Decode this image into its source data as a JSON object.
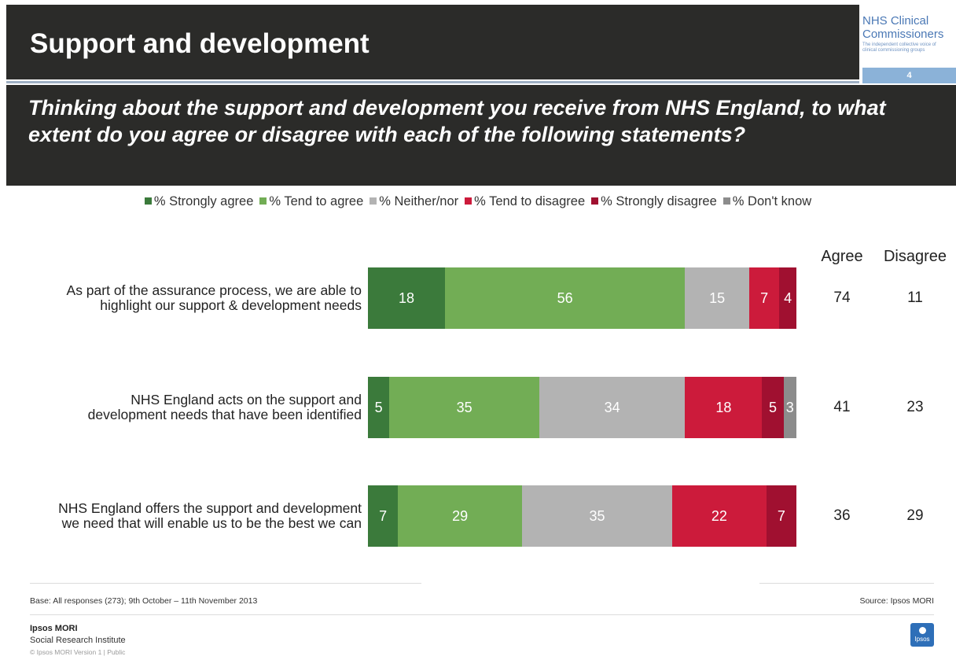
{
  "header": {
    "title": "Support and development",
    "question": "Thinking about the support and development you receive from NHS England, to what extent do you agree or disagree with each of the following statements?",
    "logo_line1": "NHS Clinical",
    "logo_line2": "Commissioners",
    "logo_sub": "The independent collective voice of clinical commissioning groups",
    "page_number": "4"
  },
  "legend": [
    {
      "label": "% Strongly agree",
      "color": "#3b7a3b"
    },
    {
      "label": "% Tend to agree",
      "color": "#72ad55"
    },
    {
      "label": "% Neither/nor",
      "color": "#b3b3b3"
    },
    {
      "label": "% Tend to disagree",
      "color": "#cc1b3b"
    },
    {
      "label": "% Strongly disagree",
      "color": "#a01030"
    },
    {
      "label": "% Don't know",
      "color": "#8c8c8c"
    }
  ],
  "columns": {
    "agree": "Agree",
    "disagree": "Disagree"
  },
  "chart_data": {
    "type": "bar",
    "orientation": "horizontal",
    "stacked": true,
    "categories": [
      "As part of the assurance process, we are able to highlight our support & development needs",
      "NHS England acts on the support and development needs that have been identified",
      "NHS England offers the support and development we need that will enable us to be the best we can"
    ],
    "category_lines": [
      [
        "As part of the assurance process, we are able to",
        "highlight our support & development needs"
      ],
      [
        "NHS England acts on the support and",
        "development needs that have been identified"
      ],
      [
        "NHS England offers the support and development",
        "we need that will enable us to be the best we can"
      ]
    ],
    "series": [
      {
        "name": "% Strongly agree",
        "values": [
          18,
          5,
          7
        ]
      },
      {
        "name": "% Tend to agree",
        "values": [
          56,
          35,
          29
        ]
      },
      {
        "name": "% Neither/nor",
        "values": [
          15,
          34,
          35
        ]
      },
      {
        "name": "% Tend to disagree",
        "values": [
          7,
          18,
          22
        ]
      },
      {
        "name": "% Strongly disagree",
        "values": [
          4,
          5,
          7
        ]
      },
      {
        "name": "% Don't know",
        "values": [
          0,
          3,
          0
        ]
      }
    ],
    "agree_totals": [
      74,
      41,
      36
    ],
    "disagree_totals": [
      11,
      23,
      29
    ],
    "xlim": [
      0,
      100
    ],
    "legend_position": "top"
  },
  "footer": {
    "base": "Base:  All responses (273); 9th October – 11th November 2013",
    "source": "Source:  Ipsos MORI",
    "org_name": "Ipsos MORI",
    "org_sub": "Social Research Institute",
    "copyright": "© Ipsos MORI    Version 1 | Public",
    "ipsos_logo_text": "Ipsos"
  }
}
